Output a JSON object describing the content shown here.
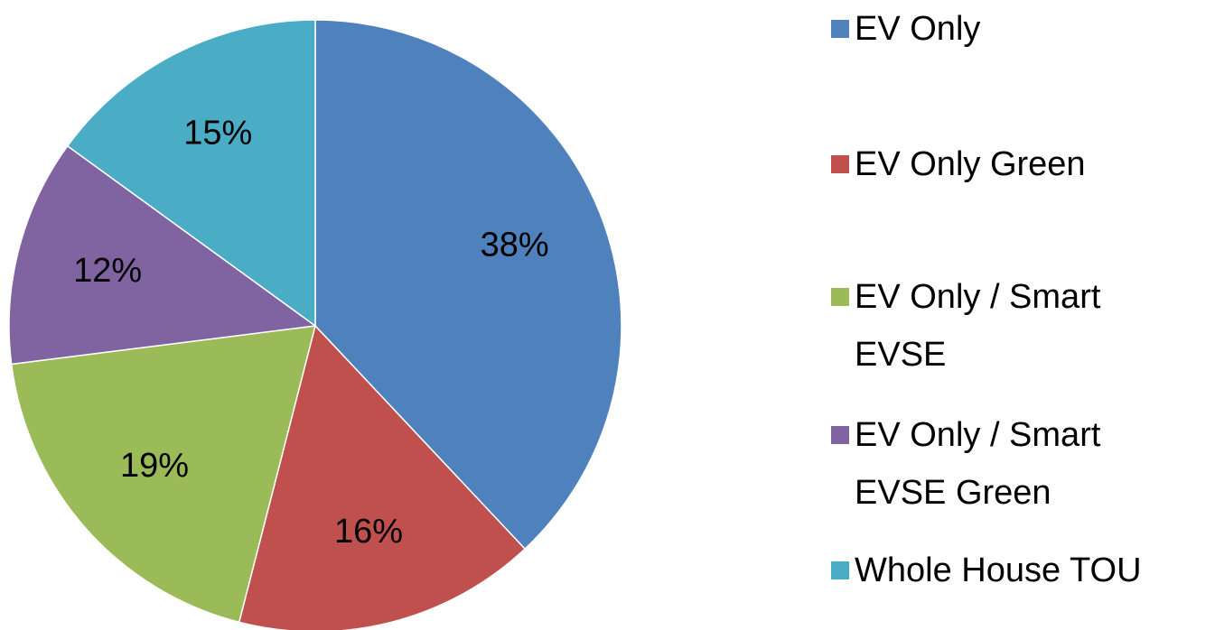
{
  "chart_data": {
    "type": "pie",
    "categories": [
      "EV Only",
      "EV Only Green",
      "EV Only / Smart EVSE",
      "EV Only / Smart EVSE Green",
      "Whole House TOU"
    ],
    "values": [
      38,
      16,
      19,
      12,
      15
    ],
    "value_labels": [
      "38%",
      "16%",
      "19%",
      "12%",
      "15%"
    ],
    "colors": [
      "#4f81bd",
      "#c0504d",
      "#9bbb59",
      "#8064a2",
      "#4bacc6"
    ]
  }
}
